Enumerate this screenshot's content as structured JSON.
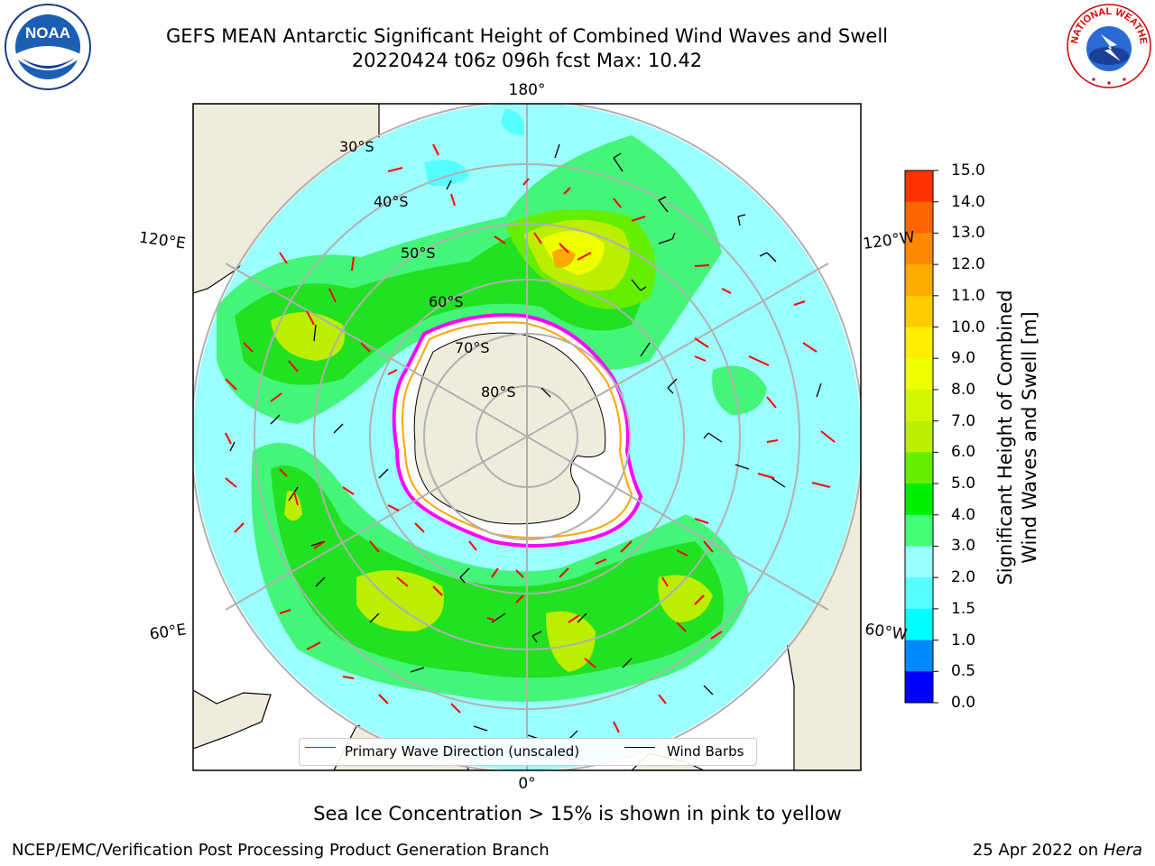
{
  "header": {
    "title_line1": "GEFS MEAN Antarctic Significant Height of Combined Wind Waves and Swell",
    "title_line2": "20220424 t06z 096h fcst   Max: 10.42"
  },
  "map": {
    "lon_labels": [
      "180°",
      "120°E",
      "120°W",
      "60°E",
      "60°W",
      "0°"
    ],
    "lat_labels": [
      "30°S",
      "40°S",
      "50°S",
      "60°S",
      "70°S",
      "80°S"
    ],
    "legend": {
      "wave_direction": "Primary Wave Direction (unscaled)",
      "wind_barbs": "Wind Barbs",
      "wave_color": "#ff0000",
      "barb_color": "#000000"
    },
    "colors": {
      "land": "#efecdc",
      "ice": "#ffffff",
      "ice_edge": [
        "#ff00ff",
        "#ffa500"
      ]
    }
  },
  "colorbar": {
    "label_line1": "Significant Height of Combined",
    "label_line2": "Wind Waves and Swell [m]",
    "ticks": [
      "15.0",
      "14.0",
      "13.0",
      "12.0",
      "11.0",
      "10.0",
      "9.0",
      "8.0",
      "7.0",
      "6.0",
      "5.0",
      "4.0",
      "3.0",
      "2.0",
      "1.5",
      "1.0",
      "0.5",
      "0.0"
    ],
    "colors": [
      "#ff0000",
      "#ff3300",
      "#ff6600",
      "#ff8800",
      "#ffaa00",
      "#ffcc00",
      "#ffee00",
      "#eeff00",
      "#d4f500",
      "#bbee00",
      "#66ee00",
      "#00ee00",
      "#44ff77",
      "#99ffff",
      "#55ffff",
      "#00ffff",
      "#0088ff",
      "#0000ff"
    ]
  },
  "caption": "Sea Ice Concentration > 15% is shown in pink to yellow",
  "footer": {
    "left": "NCEP/EMC/Verification Post Processing Product Generation Branch",
    "right_date": "25 Apr 2022 on ",
    "right_host": "Hera"
  },
  "logos": {
    "noaa_text": "NOAA",
    "nws_text": "NATIONAL WEATHER SERVICE"
  }
}
